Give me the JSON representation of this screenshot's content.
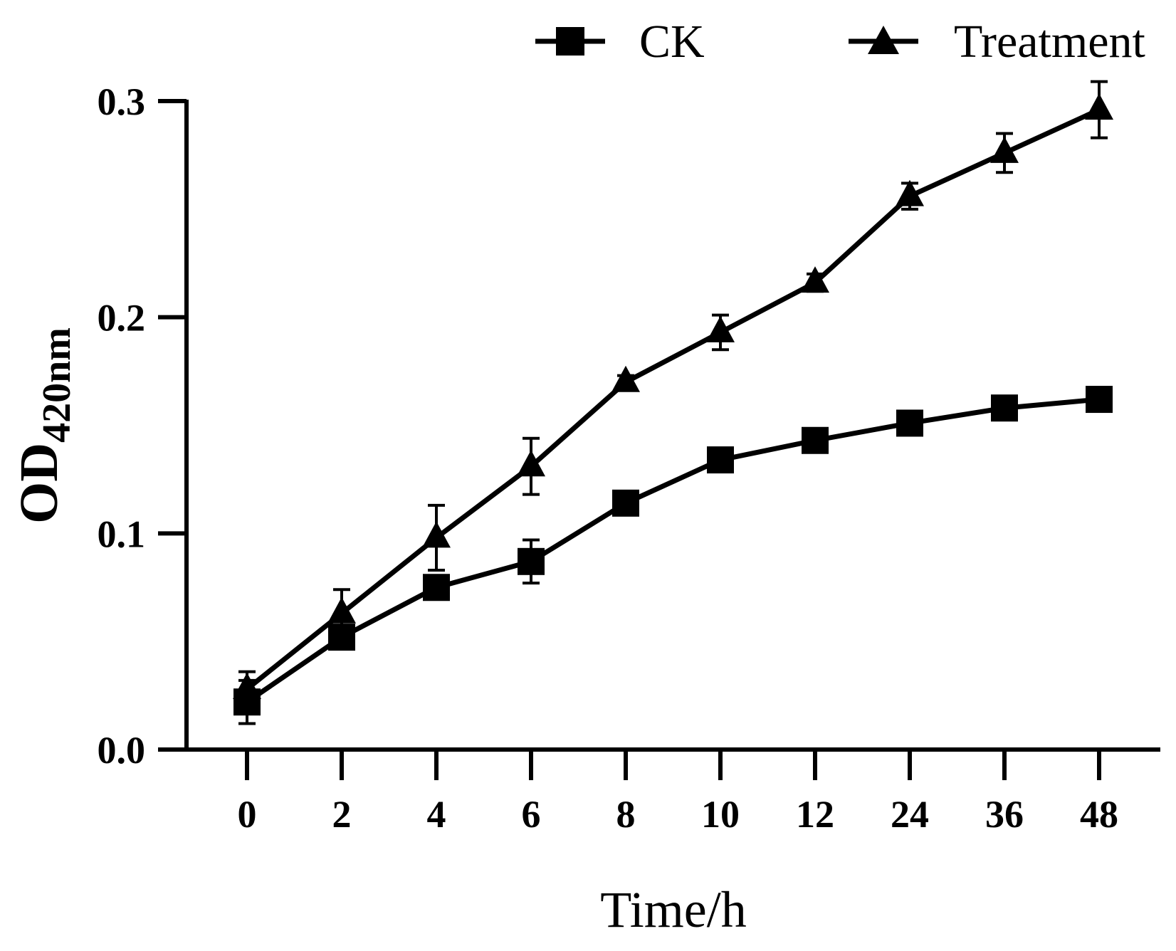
{
  "chart_data": {
    "type": "line",
    "title": "",
    "xlabel": "Time/h",
    "ylabel": "OD",
    "ylabel_subscript": "420nm",
    "categories": [
      "0",
      "2",
      "4",
      "6",
      "8",
      "10",
      "12",
      "24",
      "36",
      "48"
    ],
    "ylim": [
      0,
      0.3
    ],
    "yticks": [
      "0.0",
      "0.1",
      "0.2",
      "0.3"
    ],
    "ytick_values": [
      0,
      0.1,
      0.2,
      0.3
    ],
    "legend_position": "top-right",
    "series": [
      {
        "name": "CK",
        "marker": "square",
        "values": [
          0.022,
          0.052,
          0.075,
          0.087,
          0.114,
          0.134,
          0.143,
          0.151,
          0.158,
          0.162
        ],
        "errors": [
          0.01,
          0.005,
          0.004,
          0.01,
          0.003,
          0.003,
          0.003,
          0.004,
          0.003,
          0.003
        ]
      },
      {
        "name": "Treatment",
        "marker": "triangle",
        "values": [
          0.028,
          0.063,
          0.098,
          0.131,
          0.17,
          0.193,
          0.216,
          0.256,
          0.276,
          0.296
        ],
        "errors": [
          0.008,
          0.011,
          0.015,
          0.013,
          0.003,
          0.008,
          0.004,
          0.006,
          0.009,
          0.013
        ]
      }
    ]
  }
}
